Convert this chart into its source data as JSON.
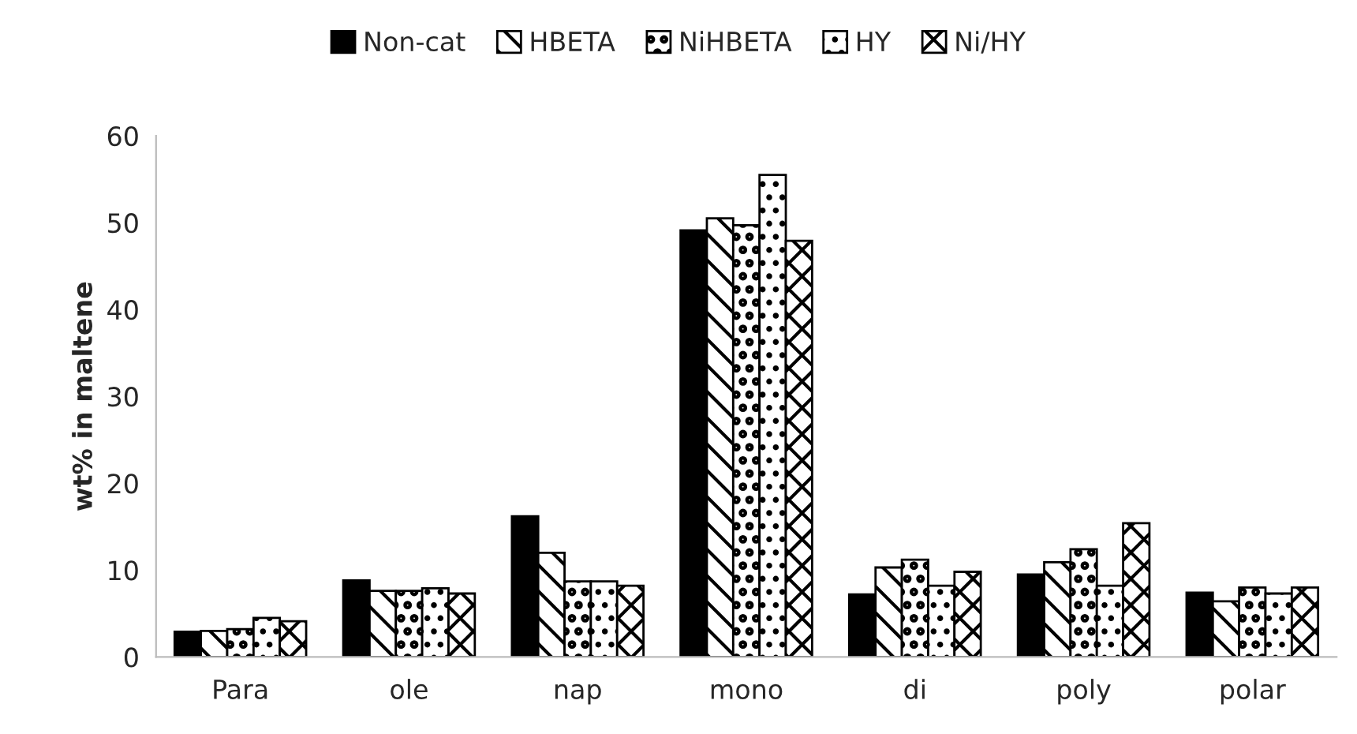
{
  "chart_data": {
    "type": "bar",
    "ylabel": "wt% in maltene",
    "categories": [
      "Para",
      "ole",
      "nap",
      "mono",
      "di",
      "poly",
      "polar"
    ],
    "series": [
      {
        "name": "Non-cat",
        "color": "#000000",
        "values": [
          2.9,
          8.8,
          16.2,
          49.1,
          7.2,
          9.5,
          7.4
        ]
      },
      {
        "name": "HBETA",
        "color": "#ffffff",
        "values": [
          3.0,
          7.6,
          12.0,
          50.5,
          10.3,
          10.9,
          6.4
        ]
      },
      {
        "name": "NiHBETA",
        "color": "#ffffff",
        "values": [
          3.2,
          7.6,
          8.7,
          49.7,
          11.2,
          12.4,
          8.0
        ]
      },
      {
        "name": "HY",
        "color": "#ffffff",
        "values": [
          4.5,
          7.9,
          8.7,
          55.5,
          8.2,
          8.2,
          7.3
        ]
      },
      {
        "name": "Ni/HY",
        "color": "#ffffff",
        "values": [
          4.1,
          7.3,
          8.2,
          47.9,
          9.8,
          15.4,
          8.0
        ]
      }
    ],
    "ylim": [
      0,
      60
    ],
    "yticks": [
      0,
      10,
      20,
      30,
      40,
      50,
      60
    ],
    "grid": false,
    "legend": "top"
  }
}
